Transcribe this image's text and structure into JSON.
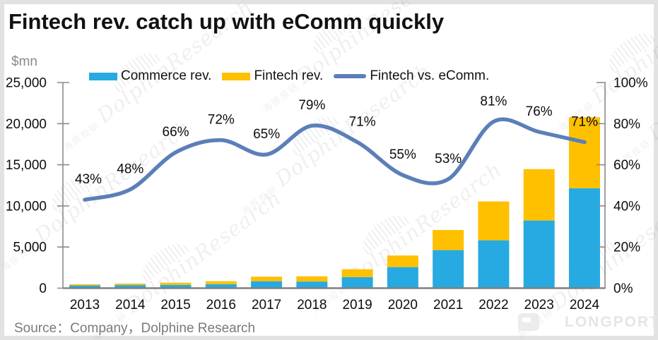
{
  "title": "Fintech rev. catch up with eComm quickly",
  "axis_unit_label": "$mn",
  "legend": {
    "items": [
      {
        "label": "Commerce rev.",
        "color": "#27AAE1",
        "swatch": "bar"
      },
      {
        "label": "Fintech rev.",
        "color": "#FFC000",
        "swatch": "bar"
      },
      {
        "label": "Fintech vs. eComm.",
        "color": "#5B7FB8",
        "swatch": "line"
      }
    ]
  },
  "chart_data": {
    "type": "bar",
    "subtype": "stacked-bars-with-line-overlay",
    "title": "Fintech rev. catch up with eComm quickly",
    "categories": [
      "2013",
      "2014",
      "2015",
      "2016",
      "2017",
      "2018",
      "2019",
      "2020",
      "2021",
      "2022",
      "2023",
      "2024"
    ],
    "series": [
      {
        "name": "Commerce rev.",
        "type": "bar",
        "stacked": true,
        "axis": "left",
        "color": "#27AAE1",
        "values": [
          330,
          375,
          395,
          490,
          845,
          805,
          1345,
          2560,
          4625,
          5820,
          8225,
          12150
        ]
      },
      {
        "name": "Fintech rev.",
        "type": "bar",
        "stacked": true,
        "axis": "left",
        "color": "#FFC000",
        "values": [
          140,
          180,
          260,
          355,
          550,
          635,
          955,
          1410,
          2445,
          4720,
          6250,
          8625
        ]
      },
      {
        "name": "Fintech vs. eComm.",
        "type": "line",
        "axis": "right",
        "color": "#5B7FB8",
        "smooth": true,
        "values": [
          43,
          48,
          66,
          72,
          65,
          79,
          71,
          55,
          53,
          81,
          76,
          71
        ],
        "data_labels": [
          "43%",
          "48%",
          "66%",
          "72%",
          "65%",
          "79%",
          "71%",
          "55%",
          "53%",
          "81%",
          "76%",
          "71%"
        ]
      }
    ],
    "left_axis": {
      "label": "$mn",
      "min": 0,
      "max": 25000,
      "tick_step": 5000,
      "tick_labels": [
        "25,000",
        "20,000",
        "15,000",
        "10,000",
        "5,000",
        "0"
      ]
    },
    "right_axis": {
      "min": 0,
      "max": 100,
      "tick_step": 20,
      "tick_labels": [
        "100%",
        "80%",
        "60%",
        "40%",
        "20%",
        "0%"
      ]
    },
    "grid": false,
    "legend_position": "top"
  },
  "source_note": "Source：Company，Dolphine Research",
  "watermark": {
    "text_cn": "海豚投研",
    "text_en": "DolphinResearch"
  },
  "logo": {
    "text": "LONGPORT"
  }
}
